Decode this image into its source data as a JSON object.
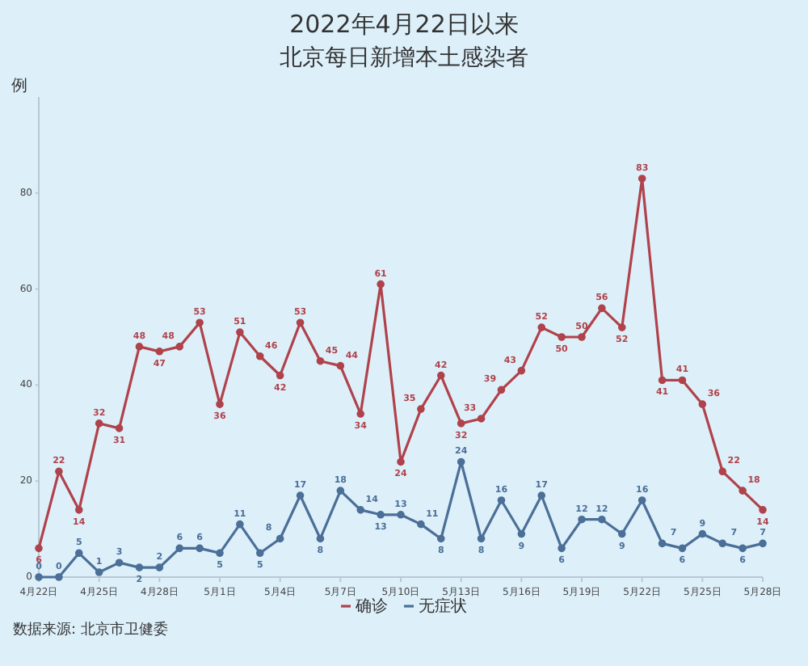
{
  "chart_data": {
    "type": "line",
    "title": "2022年4月22日以来",
    "subtitle": "北京每日新增本土感染者",
    "ylabel": "例",
    "x": [
      "2022-04-22",
      "2022-04-23",
      "2022-04-24",
      "2022-04-25",
      "2022-04-26",
      "2022-04-27",
      "2022-04-28",
      "2022-04-29",
      "2022-04-30",
      "2022-05-01",
      "2022-05-02",
      "2022-05-03",
      "2022-05-04",
      "2022-05-05",
      "2022-05-06",
      "2022-05-07",
      "2022-05-08",
      "2022-05-09",
      "2022-05-10",
      "2022-05-11",
      "2022-05-12",
      "2022-05-13",
      "2022-05-14",
      "2022-05-15",
      "2022-05-16",
      "2022-05-17",
      "2022-05-18",
      "2022-05-19",
      "2022-05-20",
      "2022-05-21",
      "2022-05-22",
      "2022-05-23",
      "2022-05-24",
      "2022-05-25",
      "2022-05-26",
      "2022-05-27",
      "2022-05-28"
    ],
    "series": [
      {
        "name": "确诊",
        "color": "#b0424b",
        "values": [
          6,
          22,
          14,
          32,
          31,
          48,
          47,
          48,
          53,
          36,
          51,
          46,
          42,
          53,
          45,
          44,
          34,
          61,
          24,
          35,
          42,
          32,
          33,
          39,
          43,
          52,
          50,
          50,
          56,
          52,
          83,
          41,
          41,
          36,
          22,
          18,
          14
        ]
      },
      {
        "name": "无症状",
        "color": "#4b6f97",
        "values": [
          0,
          0,
          5,
          1,
          3,
          2,
          2,
          6,
          6,
          5,
          11,
          5,
          8,
          17,
          8,
          18,
          14,
          13,
          13,
          11,
          8,
          24,
          8,
          16,
          9,
          17,
          6,
          12,
          12,
          9,
          16,
          7,
          6,
          9,
          7,
          6,
          7
        ]
      }
    ],
    "xlim": [
      "2022-04-22",
      "2022-05-28"
    ],
    "xticks": [
      {
        "value": "2022-04-22",
        "label": "4月22日"
      },
      {
        "value": "2022-04-25",
        "label": "4月25日"
      },
      {
        "value": "2022-04-28",
        "label": "4月28日"
      },
      {
        "value": "2022-05-01",
        "label": "5月1日"
      },
      {
        "value": "2022-05-04",
        "label": "5月4日"
      },
      {
        "value": "2022-05-07",
        "label": "5月7日"
      },
      {
        "value": "2022-05-10",
        "label": "5月10日"
      },
      {
        "value": "2022-05-13",
        "label": "5月13日"
      },
      {
        "value": "2022-05-16",
        "label": "5月16日"
      },
      {
        "value": "2022-05-19",
        "label": "5月19日"
      },
      {
        "value": "2022-05-22",
        "label": "5月22日"
      },
      {
        "value": "2022-05-25",
        "label": "5月25日"
      },
      {
        "value": "2022-05-28",
        "label": "5月28日"
      }
    ],
    "ylim": [
      0,
      100
    ],
    "yticks": [
      0,
      20,
      40,
      60,
      80
    ],
    "marker": "circle",
    "line_style": "solid",
    "data_labels": true,
    "legend": "bottom",
    "grid": false,
    "annotations": [
      "数据来源: 北京市卫健委"
    ]
  }
}
